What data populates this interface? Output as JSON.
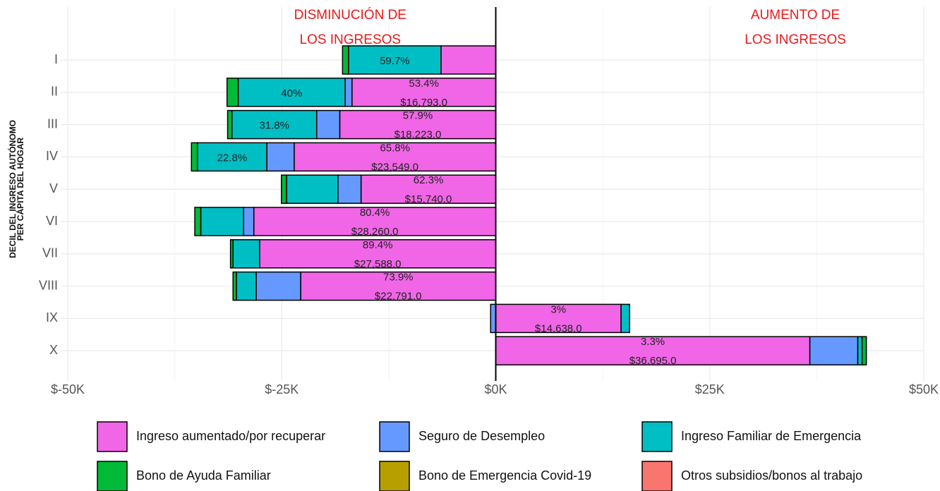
{
  "chart_data": {
    "type": "diverging_stacked_bar",
    "y_axis_label": [
      "DECIL DEL INGRESO AUTÓNOMO",
      "PER CÁPITA DEL HOGAR"
    ],
    "annotations": [
      {
        "lines": [
          "DISMINUCIÓN DE",
          "LOS INGRESOS"
        ],
        "x": -17000
      },
      {
        "lines": [
          "AUMENTO DE",
          "LOS INGRESOS"
        ],
        "x": 35000
      }
    ],
    "categories": [
      "I",
      "II",
      "III",
      "IV",
      "V",
      "VI",
      "VII",
      "VIII",
      "IX",
      "X"
    ],
    "xlim": [
      -50000,
      50000
    ],
    "xticks": [
      {
        "value": -50000,
        "label": "$-50K"
      },
      {
        "value": -25000,
        "label": "$-25K"
      },
      {
        "value": 0,
        "label": "$0K"
      },
      {
        "value": 25000,
        "label": "$25K"
      },
      {
        "value": 50000,
        "label": "$50K"
      }
    ],
    "grid": true,
    "series": [
      {
        "name": "Ingreso aumentado/por recuperar",
        "color": "#f066e6",
        "values": [
          -6400,
          -16793,
          -18223,
          -23549,
          -15740,
          -28260,
          -27588,
          -22791,
          14638,
          36695
        ],
        "value_labels": [
          null,
          "$16,793.0",
          "$18,223.0",
          "$23,549.0",
          "$15,740.0",
          "$28,260.0",
          "$27,588.0",
          "$22,791.0",
          "$14,638.0",
          "$36,695.0"
        ],
        "share_labels": [
          null,
          "53.4%",
          "57.9%",
          "65.8%",
          "62.3%",
          "80.4%",
          "89.4%",
          "73.9%",
          "3%",
          "3.3%"
        ]
      },
      {
        "name": "Seguro de Desempleo",
        "color": "#6699ff",
        "values": [
          0,
          -800,
          -2700,
          -3200,
          -2700,
          -1200,
          0,
          -5200,
          -600,
          5600
        ]
      },
      {
        "name": "Ingreso Familiar de Emergencia",
        "color": "#00bfc4",
        "values": [
          -10800,
          -12500,
          -9900,
          -8100,
          -6000,
          -5000,
          -3100,
          -2300,
          1000,
          500
        ],
        "share_labels": [
          "59.7%",
          "40%",
          "31.8%",
          "22.8%",
          null,
          null,
          null,
          null,
          null,
          null
        ]
      },
      {
        "name": "Bono de Ayuda Familiar",
        "color": "#00ba38",
        "values": [
          -700,
          -1300,
          -500,
          -700,
          -600,
          -700,
          -300,
          -400,
          0,
          500
        ]
      },
      {
        "name": "Bono de Emergencia Covid-19",
        "color": "#b79f00",
        "values": [
          0,
          0,
          0,
          0,
          0,
          0,
          0,
          0,
          0,
          0
        ]
      },
      {
        "name": "Otros subsidios/bonos al trabajo",
        "color": "#f8766d",
        "values": [
          0,
          0,
          0,
          0,
          0,
          0,
          0,
          0,
          0,
          0
        ]
      }
    ]
  }
}
